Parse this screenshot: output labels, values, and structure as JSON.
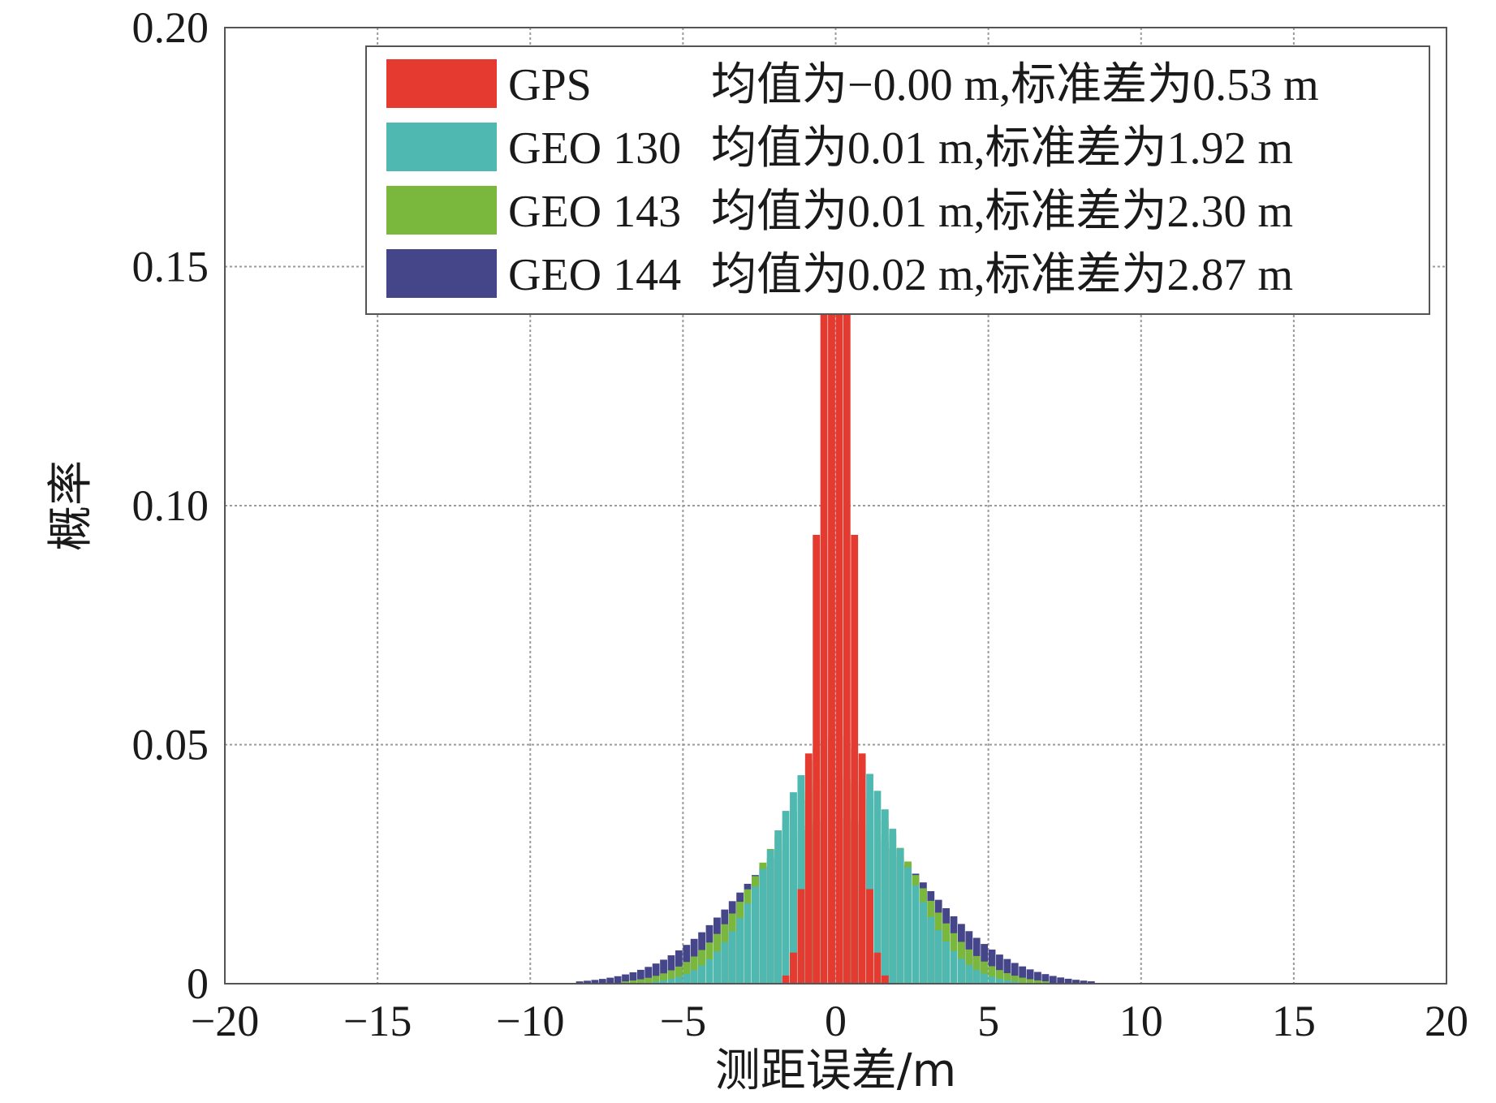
{
  "chart_data": {
    "type": "bar",
    "xlabel": "测距误差/m",
    "ylabel": "概率",
    "xlim": [
      -20,
      20
    ],
    "ylim": [
      0,
      0.2
    ],
    "x_ticks": [
      -20,
      -15,
      -10,
      -5,
      0,
      5,
      10,
      15,
      20
    ],
    "y_ticks": [
      0,
      0.05,
      0.1,
      0.15,
      0.2
    ],
    "x_tick_labels": [
      "−20",
      "−15",
      "−10",
      "−5",
      "0",
      "5",
      "10",
      "15",
      "20"
    ],
    "y_tick_labels": [
      "0",
      "0.05",
      "0.10",
      "0.15",
      "0.20"
    ],
    "grid": true,
    "legend_position": "top-right",
    "bin_width": 0.25,
    "series": [
      {
        "name": "GPS",
        "label": "均值为−0.00 m,标准差为0.53 m",
        "color": "#e53a2f",
        "mean": -0.0,
        "std": 0.53
      },
      {
        "name": "GEO 130",
        "label": "均值为0.01 m,标准差为1.92 m",
        "color": "#4fb8b0",
        "mean": 0.01,
        "std": 1.92
      },
      {
        "name": "GEO 143",
        "label": "均值为0.01 m,标准差为2.30 m",
        "color": "#7ab83d",
        "mean": 0.01,
        "std": 2.3
      },
      {
        "name": "GEO 144",
        "label": "均值为0.02 m,标准差为2.87 m",
        "color": "#454589",
        "mean": 0.02,
        "std": 2.87
      }
    ]
  }
}
